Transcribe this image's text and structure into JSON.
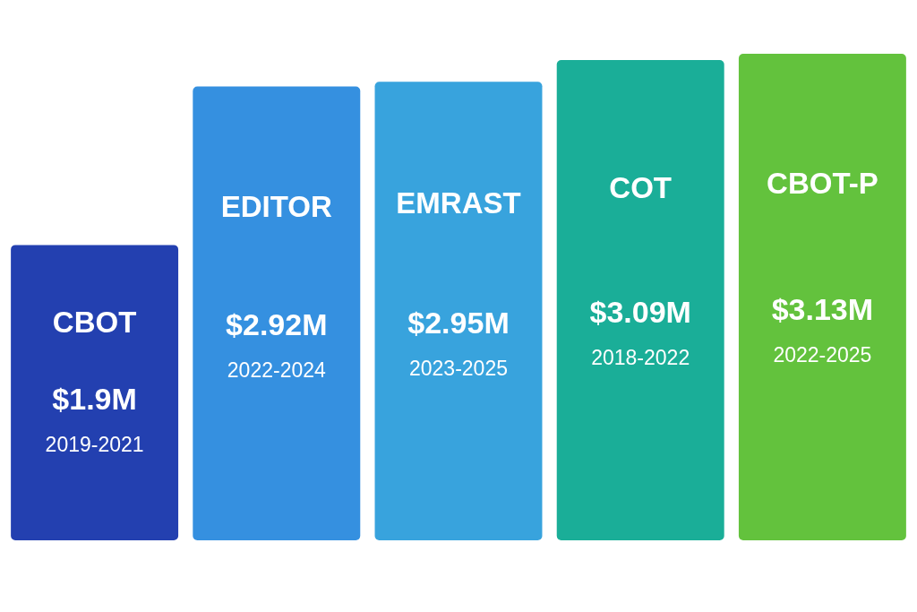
{
  "chart_data": {
    "type": "bar",
    "categories": [
      "CBOT",
      "EDITOR",
      "EMRAST",
      "COT",
      "CBOT-P"
    ],
    "values": [
      1.9,
      2.92,
      2.95,
      3.09,
      3.13
    ],
    "colors": [
      "#2340b0",
      "#3590e0",
      "#38a3dd",
      "#1aae98",
      "#63c23d"
    ],
    "value_labels": [
      "$1.9M",
      "$2.92M",
      "$2.95M",
      "$3.09M",
      "$3.13M"
    ],
    "annotations": [
      "2019-2021",
      "2022-2024",
      "2023-2025",
      "2018-2022",
      "2022-2025"
    ],
    "tick_labels": "x"
  }
}
